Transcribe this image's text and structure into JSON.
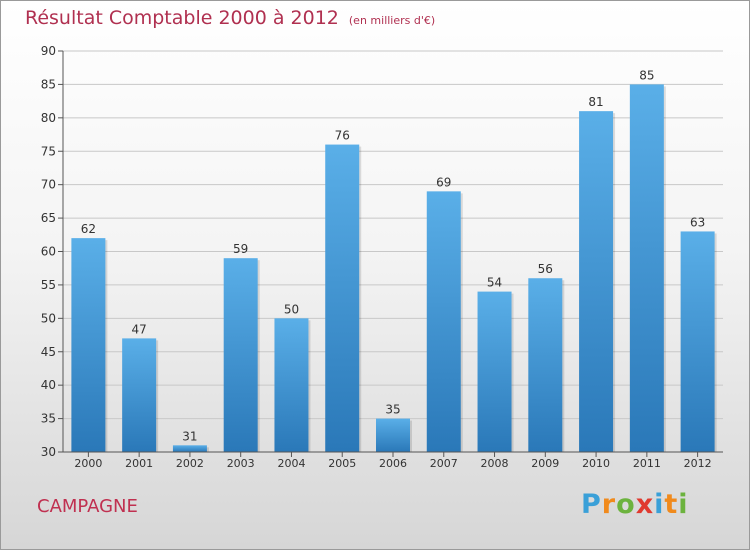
{
  "title": "Résultat Comptable 2000 à 2012",
  "subtitle": "(en milliers d'€)",
  "location": "CAMPAGNE",
  "logo": {
    "text": "Proxiti",
    "letters": [
      {
        "ch": "P",
        "color": "#3aa0d8"
      },
      {
        "ch": "r",
        "color": "#f08a1c"
      },
      {
        "ch": "o",
        "color": "#6cb33e"
      },
      {
        "ch": "x",
        "color": "#e03a2f"
      },
      {
        "ch": "i",
        "color": "#3aa0d8"
      },
      {
        "ch": "t",
        "color": "#f08a1c"
      },
      {
        "ch": "i",
        "color": "#6cb33e"
      }
    ]
  },
  "colors": {
    "bar_top": "#5aafe8",
    "bar_bottom": "#2a78b8",
    "title": "#b03050"
  },
  "chart_data": {
    "type": "bar",
    "categories": [
      "2000",
      "2001",
      "2002",
      "2003",
      "2004",
      "2005",
      "2006",
      "2007",
      "2008",
      "2009",
      "2010",
      "2011",
      "2012"
    ],
    "values": [
      62,
      47,
      31,
      59,
      50,
      76,
      35,
      69,
      54,
      56,
      81,
      85,
      63
    ],
    "ylim": [
      30,
      90
    ],
    "yticks": [
      30,
      35,
      40,
      45,
      50,
      55,
      60,
      65,
      70,
      75,
      80,
      85,
      90
    ],
    "grid": true,
    "data_labels": true
  }
}
